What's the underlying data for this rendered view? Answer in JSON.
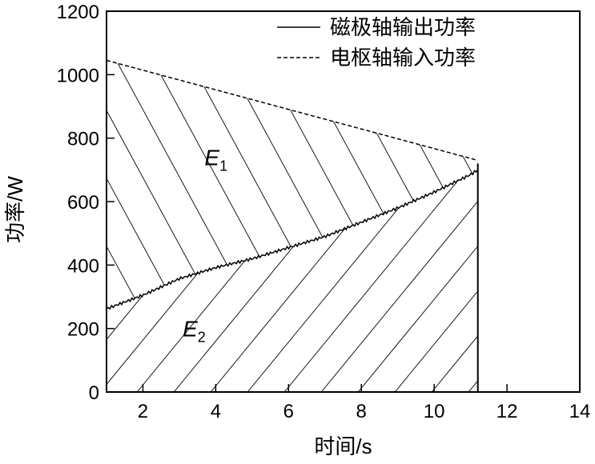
{
  "chart_data": {
    "type": "line",
    "xlabel": "时间/s",
    "ylabel": "功率/W",
    "xlim": [
      1,
      14
    ],
    "ylim": [
      0,
      1200
    ],
    "xticks": [
      2,
      4,
      6,
      8,
      10,
      12,
      14
    ],
    "yticks": [
      0,
      200,
      400,
      600,
      800,
      1000,
      1200
    ],
    "grid": false,
    "legend_position": "top-right",
    "series": [
      {
        "name": "磁极轴输出功率",
        "style": "solid",
        "color": "#000000",
        "x": [
          1.0,
          2.0,
          3.0,
          4.0,
          5.0,
          6.0,
          7.0,
          8.0,
          9.0,
          10.0,
          11.0,
          11.2
        ],
        "y": [
          262,
          305,
          357,
          392,
          420,
          455,
          490,
          535,
          580,
          630,
          685,
          700
        ]
      },
      {
        "name": "电枢轴输入功率",
        "style": "dashed",
        "color": "#000000",
        "x": [
          1.0,
          11.2
        ],
        "y": [
          1045,
          730
        ]
      }
    ],
    "end_time": 11.2,
    "annotations": [
      {
        "text": "E",
        "sub": "1",
        "x": 4.0,
        "y": 740
      },
      {
        "text": "E",
        "sub": "2",
        "x": 3.4,
        "y": 200
      }
    ]
  }
}
